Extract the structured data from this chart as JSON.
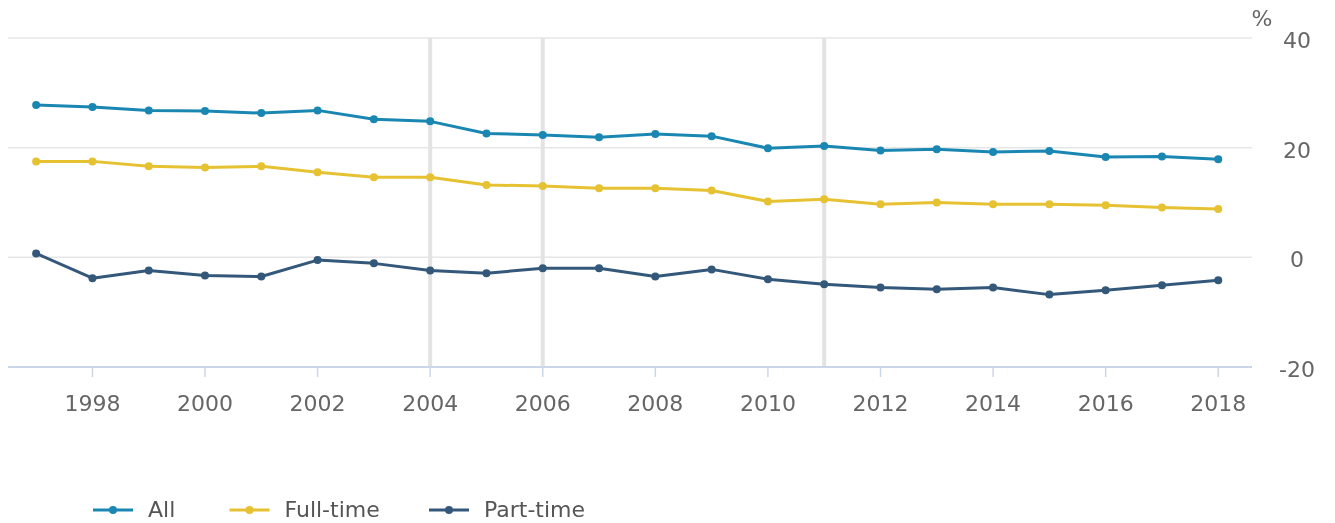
{
  "chart_data": {
    "type": "line",
    "ylabel": "%",
    "x": [
      1997,
      1998,
      1999,
      2000,
      2001,
      2002,
      2003,
      2004,
      2005,
      2006,
      2007,
      2008,
      2009,
      2010,
      2011,
      2012,
      2013,
      2014,
      2015,
      2016,
      2017,
      2018
    ],
    "series": [
      {
        "name": "All",
        "color": "#1a87b3",
        "values": [
          27.8,
          27.4,
          26.8,
          26.7,
          26.3,
          26.8,
          25.2,
          24.8,
          22.6,
          22.3,
          21.9,
          22.5,
          22.1,
          19.9,
          20.3,
          19.5,
          19.7,
          19.2,
          19.4,
          18.3,
          18.4,
          17.9
        ]
      },
      {
        "name": "Full-time",
        "color": "#e6c232",
        "values": [
          17.5,
          17.5,
          16.6,
          16.4,
          16.6,
          15.5,
          14.6,
          14.6,
          13.2,
          13.0,
          12.6,
          12.6,
          12.2,
          10.2,
          10.6,
          9.7,
          10.0,
          9.7,
          9.7,
          9.5,
          9.1,
          8.8
        ]
      },
      {
        "name": "Part-time",
        "color": "#34587a",
        "values": [
          0.7,
          -3.8,
          -2.4,
          -3.3,
          -3.5,
          -0.5,
          -1.1,
          -2.4,
          -2.9,
          -2.0,
          -2.0,
          -3.5,
          -2.2,
          -4.0,
          -4.9,
          -5.5,
          -5.8,
          -5.5,
          -6.8,
          -6.0,
          -5.1,
          -4.2
        ]
      }
    ],
    "xlim": [
      1996.5,
      2018.6
    ],
    "xticks": [
      1998,
      2000,
      2002,
      2004,
      2006,
      2008,
      2010,
      2012,
      2014,
      2016,
      2018
    ],
    "ylim": [
      -20,
      40
    ],
    "yticks": [
      -20,
      0,
      20,
      40
    ],
    "ref_lines": [
      {
        "axis": "x",
        "value": 2004,
        "color": "#e3e3e3"
      },
      {
        "axis": "x",
        "value": 2006,
        "color": "#e3e3e3"
      },
      {
        "axis": "x",
        "value": 2011,
        "color": "#e3e3e3"
      }
    ],
    "grid": "y",
    "legend": "bottom left",
    "marker": "circle",
    "line_style": "solid"
  }
}
